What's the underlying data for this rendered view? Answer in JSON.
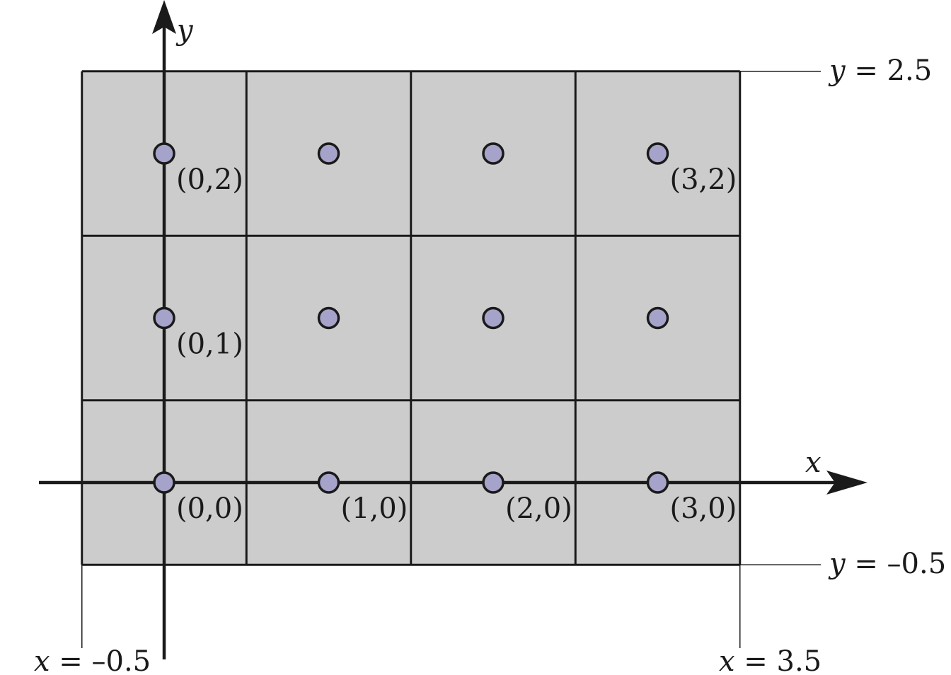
{
  "colors": {
    "cell_fill": "#cccccc",
    "line": "#1a1a1a",
    "point_fill": "#a5a3c9"
  },
  "grid": {
    "x_min": -0.5,
    "x_max": 3.5,
    "y_min": -0.5,
    "y_max": 2.5
  },
  "axes": {
    "x_label": "x",
    "y_label": "y"
  },
  "bound_labels": {
    "y_top": {
      "var": "y",
      "rest": " = 2.5"
    },
    "y_bottom": {
      "var": "y",
      "rest": " = –0.5"
    },
    "x_left": {
      "var": "x",
      "rest": " = –0.5"
    },
    "x_right": {
      "var": "x",
      "rest": " = 3.5"
    }
  },
  "points": [
    {
      "x": 0,
      "y": 0,
      "label": "(0,0)"
    },
    {
      "x": 1,
      "y": 0,
      "label": "(1,0)"
    },
    {
      "x": 2,
      "y": 0,
      "label": "(2,0)"
    },
    {
      "x": 3,
      "y": 0,
      "label": "(3,0)"
    },
    {
      "x": 0,
      "y": 1,
      "label": "(0,1)"
    },
    {
      "x": 1,
      "y": 1,
      "label": ""
    },
    {
      "x": 2,
      "y": 1,
      "label": ""
    },
    {
      "x": 3,
      "y": 1,
      "label": ""
    },
    {
      "x": 0,
      "y": 2,
      "label": "(0,2)"
    },
    {
      "x": 1,
      "y": 2,
      "label": ""
    },
    {
      "x": 2,
      "y": 2,
      "label": ""
    },
    {
      "x": 3,
      "y": 2,
      "label": "(3,2)"
    }
  ]
}
